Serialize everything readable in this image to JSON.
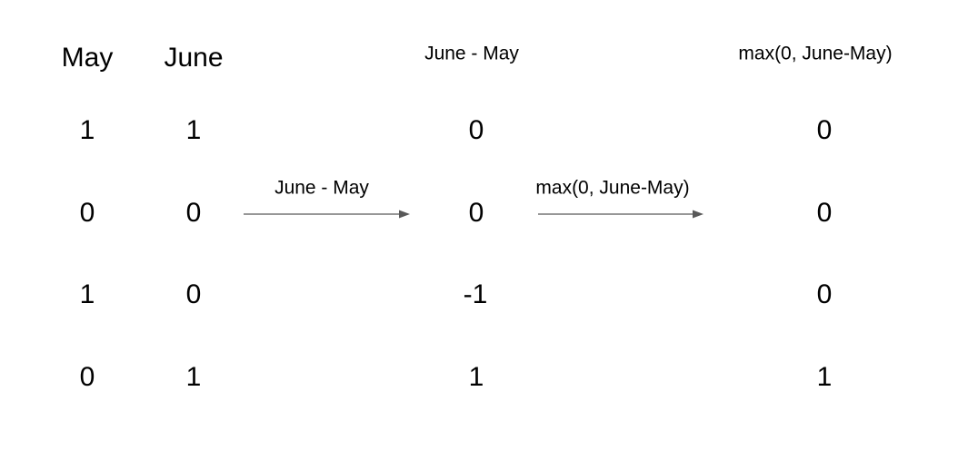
{
  "headers": {
    "may": "May",
    "june": "June",
    "diff": "June - May",
    "max": "max(0, June-May)"
  },
  "rows": [
    {
      "may": "1",
      "june": "1",
      "diff": "0",
      "max": "0"
    },
    {
      "may": "0",
      "june": "0",
      "diff": "0",
      "max": "0"
    },
    {
      "may": "1",
      "june": "0",
      "diff": "-1",
      "max": "0"
    },
    {
      "may": "0",
      "june": "1",
      "diff": "1",
      "max": "1"
    }
  ],
  "arrows": {
    "first_label": "June - May",
    "second_label": "max(0, June-May)"
  },
  "colors": {
    "arrow": "#595959",
    "text": "#000000"
  }
}
